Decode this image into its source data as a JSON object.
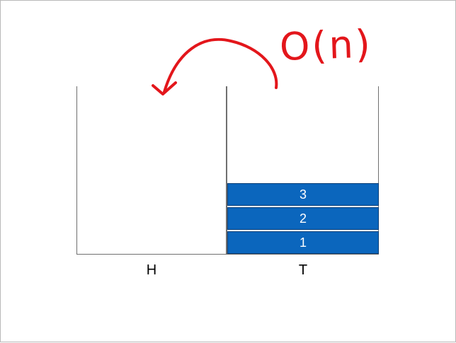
{
  "stacks": [
    {
      "label": "H",
      "items": []
    },
    {
      "label": "T",
      "items": [
        "1",
        "2",
        "3"
      ]
    }
  ],
  "annotation": {
    "text": "O(n)",
    "color": "#e3161b"
  },
  "colors": {
    "block_fill": "#0b66bd",
    "block_border": "#0a3d75",
    "line": "#6f6f6f"
  }
}
